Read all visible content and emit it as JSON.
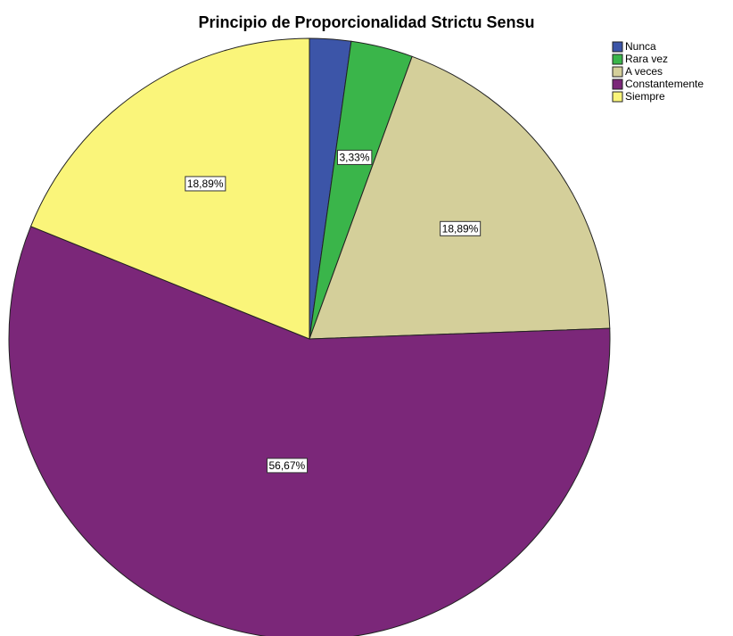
{
  "chart_data": {
    "type": "pie",
    "title": "Principio de Proporcionalidad Strictu Sensu",
    "categories": [
      "Nunca",
      "Rara vez",
      "A veces",
      "Constantemente",
      "Siempre"
    ],
    "values": [
      2.22,
      3.33,
      18.89,
      56.67,
      18.89
    ],
    "value_labels": [
      null,
      "3,33%",
      "18,89%",
      "56,67%",
      "18,89%"
    ],
    "colors": [
      "#3c55a8",
      "#3ab54a",
      "#d4cf9a",
      "#7b2779",
      "#faf57a"
    ],
    "legend": "top-right"
  }
}
